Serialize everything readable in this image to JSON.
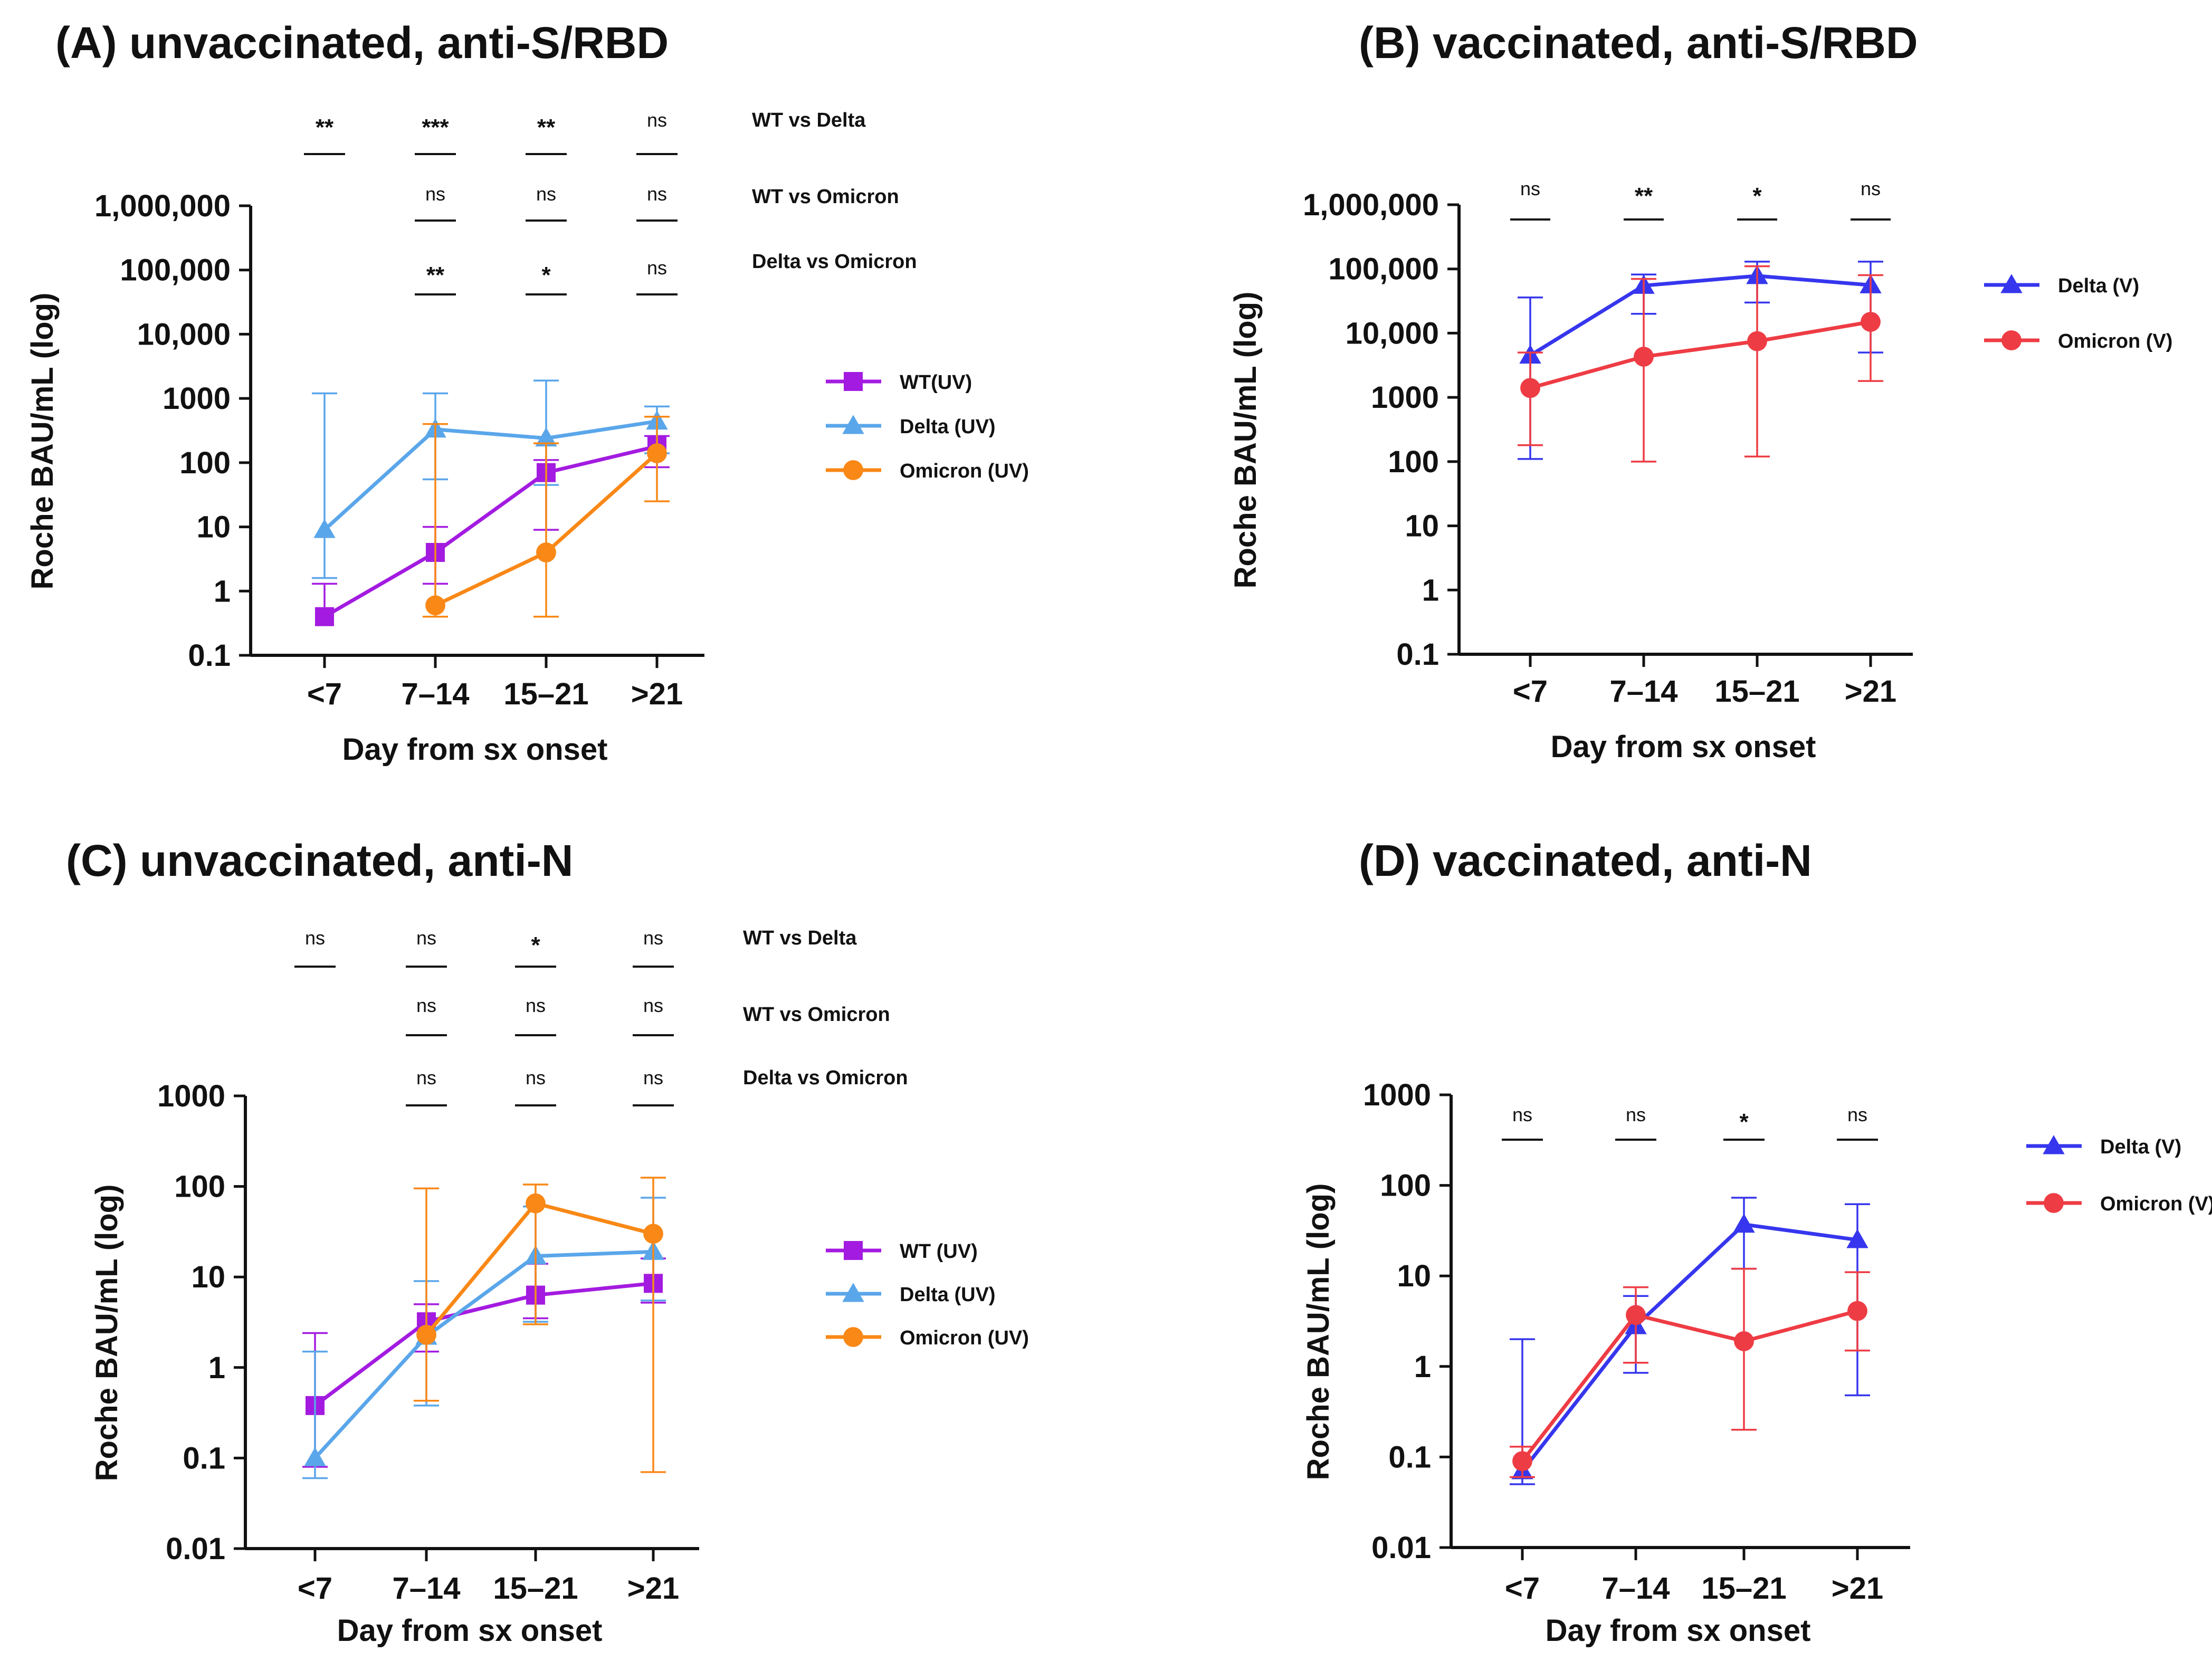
{
  "chart_data": [
    {
      "id": "A",
      "type": "line",
      "title": "(A) unvaccinated, anti-S/RBD",
      "xlabel": "Day from sx onset",
      "ylabel": "Roche BAU/mL (log)",
      "yscale": "log",
      "ylim": [
        0.1,
        1000000
      ],
      "yticks": [
        0.1,
        1,
        10,
        100,
        1000,
        10000,
        100000,
        1000000
      ],
      "ytick_labels": [
        "0.1",
        "1",
        "10",
        "100",
        "1000",
        "10,000",
        "100,000",
        "1,000,000"
      ],
      "categories": [
        "<7",
        "7–14",
        "15–21",
        ">21"
      ],
      "series": [
        {
          "name": "WT(UV)",
          "color": "#a31be0",
          "marker": "square",
          "values": [
            0.4,
            4,
            70,
            180
          ],
          "err_low": [
            null,
            1.3,
            9,
            85
          ],
          "err_high": [
            1.3,
            10,
            110,
            260
          ]
        },
        {
          "name": "Delta (UV)",
          "color": "#5aa6ea",
          "marker": "triangle",
          "values": [
            9,
            330,
            240,
            440
          ],
          "err_low": [
            1.6,
            55,
            45,
            140
          ],
          "err_high": [
            1200,
            1200,
            1900,
            750
          ]
        },
        {
          "name": "Omicron (UV)",
          "color": "#f98817",
          "marker": "circle",
          "values": [
            null,
            0.6,
            4,
            140
          ],
          "err_low": [
            null,
            0.4,
            0.4,
            25
          ],
          "err_high": [
            null,
            400,
            200,
            520
          ]
        }
      ],
      "comparisons": [
        {
          "label": "WT vs Delta",
          "marks": [
            "**",
            "***",
            "**",
            "ns"
          ]
        },
        {
          "label": "WT vs Omicron",
          "marks": [
            "",
            "ns",
            "ns",
            "ns"
          ]
        },
        {
          "label": "Delta vs Omicron",
          "marks": [
            "",
            "**",
            "*",
            "ns"
          ]
        }
      ],
      "legend_position": "right"
    },
    {
      "id": "B",
      "type": "line",
      "title": "(B) vaccinated, anti-S/RBD",
      "xlabel": "Day from sx onset",
      "ylabel": "Roche BAU/mL (log)",
      "yscale": "log",
      "ylim": [
        0.1,
        1000000
      ],
      "yticks": [
        0.1,
        1,
        10,
        100,
        1000,
        10000,
        100000,
        1000000
      ],
      "ytick_labels": [
        "0.1",
        "1",
        "10",
        "100",
        "1000",
        "10,000",
        "100,000",
        "1,000,000"
      ],
      "categories": [
        "<7",
        "7–14",
        "15–21",
        ">21"
      ],
      "series": [
        {
          "name": "Delta (V)",
          "color": "#3636ee",
          "marker": "triangle",
          "values": [
            4500,
            55000,
            78000,
            56000
          ],
          "err_low": [
            110,
            20000,
            30000,
            5000
          ],
          "err_high": [
            36000,
            82000,
            130000,
            130000
          ]
        },
        {
          "name": "Omicron (V)",
          "color": "#ee3c44",
          "marker": "circle",
          "values": [
            1400,
            4300,
            7500,
            15000
          ],
          "err_low": [
            180,
            100,
            120,
            1800
          ],
          "err_high": [
            5000,
            70000,
            110000,
            80000
          ]
        }
      ],
      "comparisons": [
        {
          "label": "",
          "marks": [
            "ns",
            "**",
            "*",
            "ns"
          ]
        }
      ],
      "legend_position": "right"
    },
    {
      "id": "C",
      "type": "line",
      "title": "(C) unvaccinated, anti-N",
      "xlabel": "Day from sx onset",
      "ylabel": "Roche BAU/mL (log)",
      "yscale": "log",
      "ylim": [
        0.01,
        1000
      ],
      "yticks": [
        0.01,
        0.1,
        1,
        10,
        100,
        1000
      ],
      "ytick_labels": [
        "0.01",
        "0.1",
        "1",
        "10",
        "100",
        "1000"
      ],
      "categories": [
        "<7",
        "7–14",
        "15–21",
        ">21"
      ],
      "series": [
        {
          "name": "WT (UV)",
          "color": "#a31be0",
          "marker": "square",
          "values": [
            0.38,
            3.2,
            6.3,
            8.5
          ],
          "err_low": [
            0.08,
            1.5,
            3.5,
            5.2
          ],
          "err_high": [
            2.4,
            5,
            14,
            16
          ]
        },
        {
          "name": "Delta (UV)",
          "color": "#5aa6ea",
          "marker": "triangle",
          "values": [
            0.1,
            2.2,
            17,
            19
          ],
          "err_low": [
            0.06,
            0.38,
            3.2,
            5.5
          ],
          "err_high": [
            1.5,
            9,
            60,
            75
          ]
        },
        {
          "name": "Omicron (UV)",
          "color": "#f98817",
          "marker": "circle",
          "values": [
            null,
            2.3,
            65,
            30
          ],
          "err_low": [
            null,
            0.43,
            3,
            0.07
          ],
          "err_high": [
            null,
            95,
            105,
            125
          ]
        }
      ],
      "comparisons": [
        {
          "label": "WT vs Delta",
          "marks": [
            "ns",
            "ns",
            "*",
            "ns"
          ]
        },
        {
          "label": "WT vs Omicron",
          "marks": [
            "",
            "ns",
            "ns",
            "ns"
          ]
        },
        {
          "label": "Delta vs Omicron",
          "marks": [
            "",
            "ns",
            "ns",
            "ns"
          ]
        }
      ],
      "legend_position": "right"
    },
    {
      "id": "D",
      "type": "line",
      "title": "(D) vaccinated, anti-N",
      "xlabel": "Day from sx onset",
      "ylabel": "Roche BAU/mL  (log)",
      "yscale": "log",
      "ylim": [
        0.01,
        1000
      ],
      "yticks": [
        0.01,
        0.1,
        1,
        10,
        100,
        1000
      ],
      "ytick_labels": [
        "0.01",
        "0.1",
        "1",
        "10",
        "100",
        "1000"
      ],
      "categories": [
        "<7",
        "7–14",
        "15–21",
        ">21"
      ],
      "series": [
        {
          "name": "Delta (V)",
          "color": "#3636ee",
          "marker": "triangle",
          "values": [
            0.07,
            2.8,
            37,
            25
          ],
          "err_low": [
            0.05,
            0.85,
            12,
            0.48
          ],
          "err_high": [
            2,
            6,
            73,
            62
          ]
        },
        {
          "name": "Omicron (V)",
          "color": "#ee3c44",
          "marker": "circle",
          "values": [
            0.09,
            3.7,
            1.9,
            4.1
          ],
          "err_low": [
            0.06,
            1.1,
            0.2,
            1.5
          ],
          "err_high": [
            0.13,
            7.5,
            12,
            11
          ]
        }
      ],
      "comparisons": [
        {
          "label": "",
          "marks": [
            "ns",
            "ns",
            "*",
            "ns"
          ]
        }
      ],
      "legend_position": "right"
    }
  ]
}
